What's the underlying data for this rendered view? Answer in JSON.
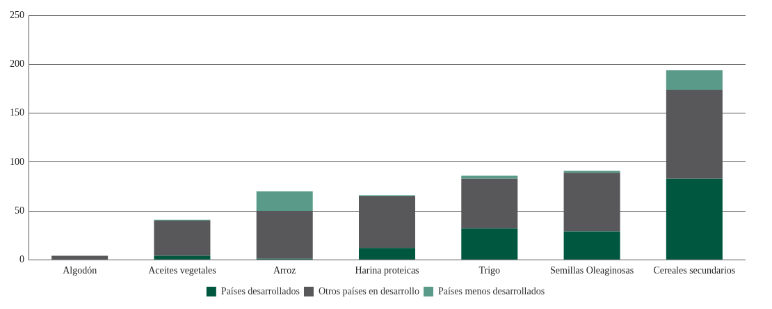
{
  "chart_data": {
    "type": "bar",
    "stacked": true,
    "categories": [
      "Algodón",
      "Aceites vegetales",
      "Arroz",
      "Harina proteicas",
      "Trigo",
      "Semillas Oleaginosas",
      "Cereales secundarios"
    ],
    "series": [
      {
        "name": "Países desarrollados",
        "color": "#00573f",
        "values": [
          0,
          4,
          1,
          12,
          32,
          29,
          83
        ]
      },
      {
        "name": "Otros países en desarrollo",
        "color": "#58585a",
        "values": [
          4,
          36,
          49,
          53,
          51,
          60,
          91
        ]
      },
      {
        "name": "Países menos desarrollados",
        "color": "#5a9a88",
        "values": [
          0,
          1,
          20,
          1,
          3,
          2,
          20
        ]
      }
    ],
    "ylim": [
      0,
      250
    ],
    "yticks": [
      0,
      50,
      100,
      150,
      200,
      250
    ],
    "grid": "y",
    "legend": "bottom"
  }
}
